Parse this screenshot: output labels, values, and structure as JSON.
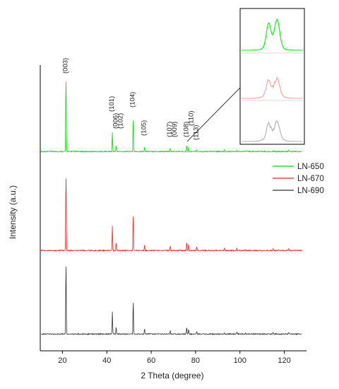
{
  "chart_data": {
    "type": "line",
    "title": "",
    "xlabel": "2 Theta (degree)",
    "ylabel": "Intensity (a.u.)",
    "xlim": [
      10,
      130
    ],
    "x_ticks": [
      20,
      40,
      60,
      80,
      100,
      120
    ],
    "y_ticks_shown": false,
    "grid": false,
    "legend_placement": "right, middle",
    "series": [
      {
        "name": "LN-650",
        "color": "#00dd00",
        "peaks": [
          {
            "x": 21.6,
            "y": 100
          },
          {
            "x": 42.5,
            "y": 25
          },
          {
            "x": 44.2,
            "y": 8
          },
          {
            "x": 51.9,
            "y": 45
          },
          {
            "x": 57.0,
            "y": 6
          },
          {
            "x": 68.6,
            "y": 4
          },
          {
            "x": 76.0,
            "y": 8
          },
          {
            "x": 76.9,
            "y": 6
          },
          {
            "x": 80.5,
            "y": 3
          },
          {
            "x": 93.0,
            "y": 2
          },
          {
            "x": 98.6,
            "y": 2
          },
          {
            "x": 102.5,
            "y": 1.5
          },
          {
            "x": 115.0,
            "y": 1.5
          },
          {
            "x": 122.0,
            "y": 1.5
          }
        ]
      },
      {
        "name": "LN-670",
        "color": "#ee2222",
        "peaks": [
          {
            "x": 21.6,
            "y": 100
          },
          {
            "x": 42.5,
            "y": 31
          },
          {
            "x": 44.2,
            "y": 11
          },
          {
            "x": 51.9,
            "y": 47
          },
          {
            "x": 57.0,
            "y": 8
          },
          {
            "x": 68.6,
            "y": 6
          },
          {
            "x": 76.0,
            "y": 10
          },
          {
            "x": 76.9,
            "y": 8
          },
          {
            "x": 80.5,
            "y": 5
          },
          {
            "x": 93.0,
            "y": 3
          },
          {
            "x": 98.6,
            "y": 3
          },
          {
            "x": 102.5,
            "y": 2
          },
          {
            "x": 115.0,
            "y": 2
          },
          {
            "x": 122.0,
            "y": 2
          }
        ]
      },
      {
        "name": "LN-690",
        "color": "#333333",
        "peaks": [
          {
            "x": 21.6,
            "y": 100
          },
          {
            "x": 42.5,
            "y": 30
          },
          {
            "x": 44.2,
            "y": 10
          },
          {
            "x": 51.9,
            "y": 46
          },
          {
            "x": 57.0,
            "y": 7
          },
          {
            "x": 68.6,
            "y": 5
          },
          {
            "x": 76.0,
            "y": 9
          },
          {
            "x": 76.9,
            "y": 7
          },
          {
            "x": 80.5,
            "y": 4
          },
          {
            "x": 93.0,
            "y": 2
          },
          {
            "x": 98.6,
            "y": 3
          },
          {
            "x": 102.5,
            "y": 2
          },
          {
            "x": 115.0,
            "y": 2
          },
          {
            "x": 122.0,
            "y": 2
          }
        ]
      }
    ],
    "annotations": [
      {
        "text": "(003)",
        "x": 21.6
      },
      {
        "text": "(101)",
        "x": 42.5
      },
      {
        "text": "(006)",
        "x": 44.2
      },
      {
        "text": "(102)",
        "x": 46.5
      },
      {
        "text": "(104)",
        "x": 51.9
      },
      {
        "text": "(105)",
        "x": 57.0
      },
      {
        "text": "(107)",
        "x": 68.6
      },
      {
        "text": "(009)",
        "x": 70.8
      },
      {
        "text": "(108)",
        "x": 76.0
      },
      {
        "text": "(110)",
        "x": 78.3
      },
      {
        "text": "(113)",
        "x": 80.5
      }
    ],
    "inset": {
      "description_of": "zoom of the (108)/(110) doublet near 76-77 degrees",
      "series_order": [
        "LN-650",
        "LN-670",
        "LN-690"
      ]
    }
  }
}
